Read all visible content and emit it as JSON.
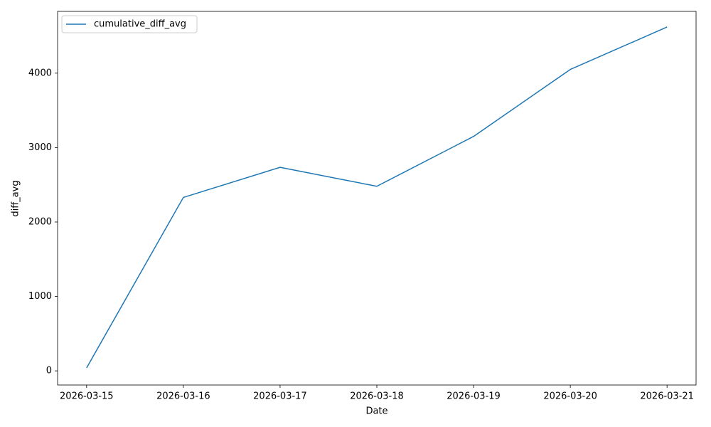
{
  "chart_data": {
    "type": "line",
    "xlabel": "Date",
    "ylabel": "diff_avg",
    "categories": [
      "2026-03-15",
      "2026-03-16",
      "2026-03-17",
      "2026-03-18",
      "2026-03-19",
      "2026-03-20",
      "2026-03-21"
    ],
    "series": [
      {
        "name": "cumulative_diff_avg",
        "color": "#1f77b4",
        "values": [
          40,
          2330,
          2735,
          2480,
          3150,
          4050,
          4620
        ]
      }
    ],
    "ylim": [
      -190,
      4830
    ],
    "yticks": [
      0,
      1000,
      2000,
      3000,
      4000
    ],
    "grid": false,
    "legend": "upper left"
  }
}
